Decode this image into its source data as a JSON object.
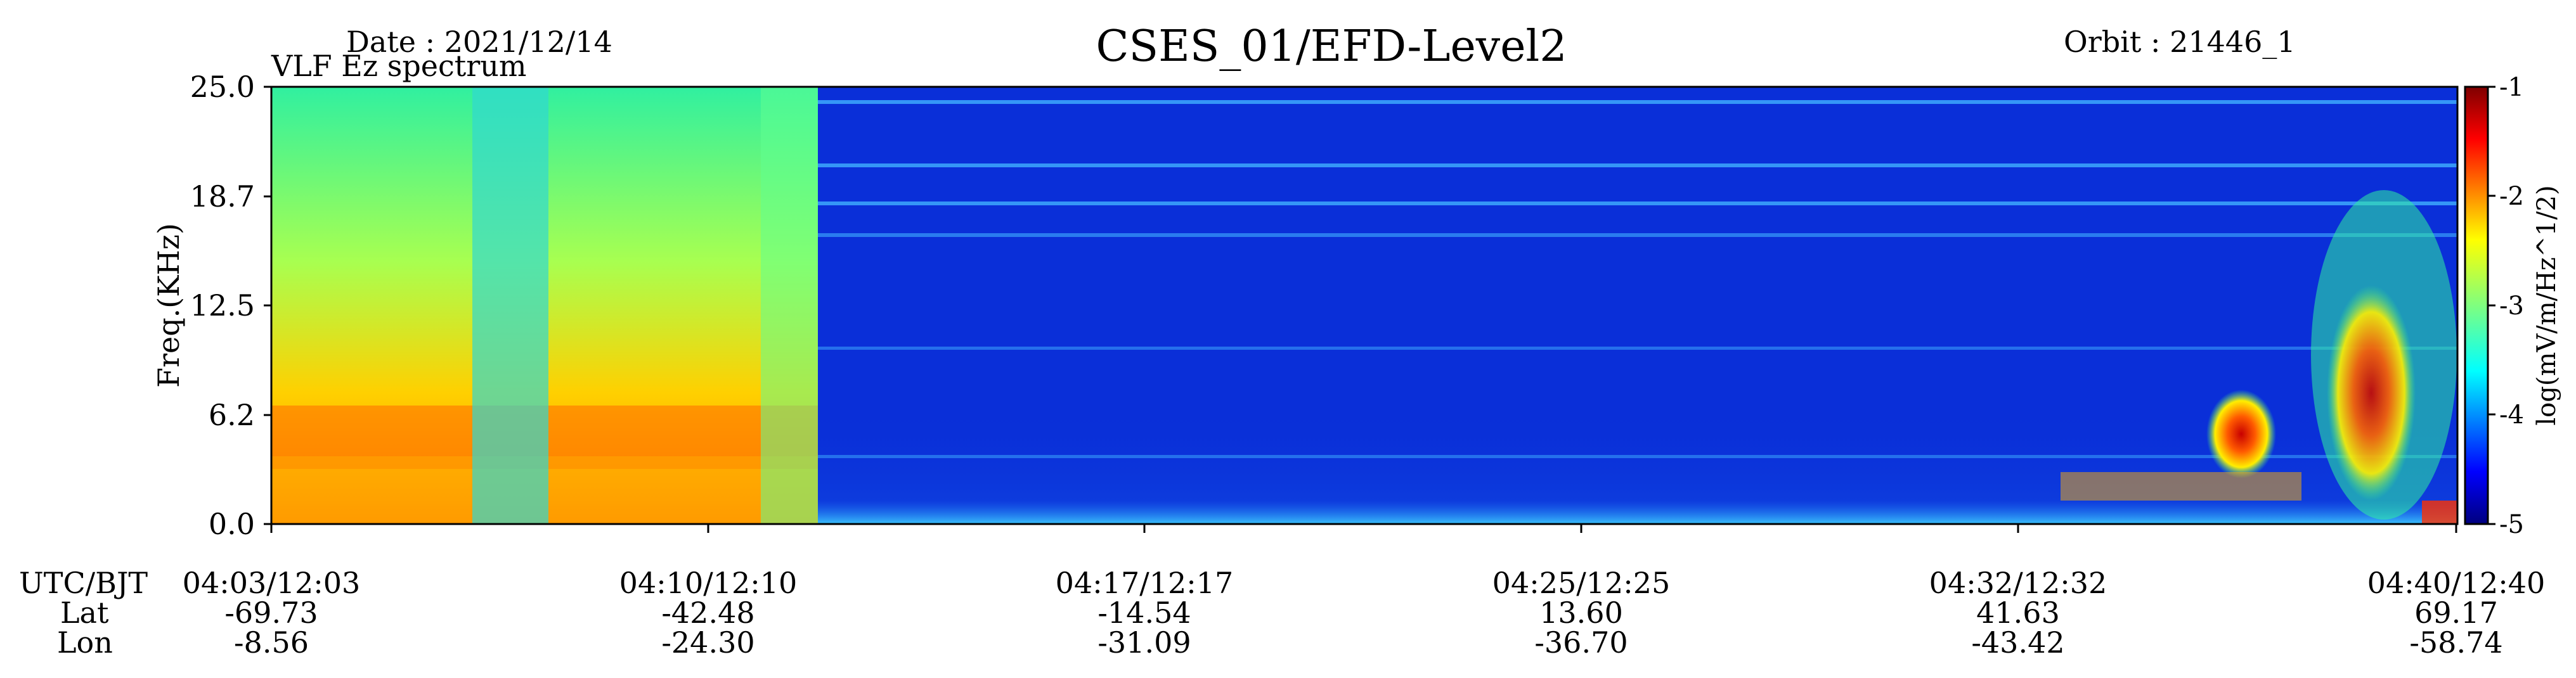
{
  "header": {
    "date": "Date : 2021/12/14",
    "subtitle": "VLF Ez spectrum",
    "title": "CSES_01/EFD-Level2",
    "orbit": "Orbit : 21446_1"
  },
  "chart_data": {
    "type": "heatmap",
    "title": "CSES_01/EFD-Level2",
    "subtitle": "VLF Ez spectrum",
    "ylabel": "Freq.(KHz)",
    "ylim": [
      0.0,
      25.0
    ],
    "yticks": [
      "0.0",
      "6.2",
      "12.5",
      "18.7",
      "25.0"
    ],
    "colorbar": {
      "label": "log(mV/m/Hz^1/2)",
      "range": [
        -5,
        -1
      ],
      "ticks": [
        "-1",
        "-2",
        "-3",
        "-4",
        "-5"
      ],
      "colormap": "jet"
    },
    "x_row_labels": [
      "UTC/BJT",
      "Lat",
      "Lon"
    ],
    "x_ticks": [
      {
        "time": "04:03/12:03",
        "lat": "-69.73",
        "lon": "-8.56"
      },
      {
        "time": "04:10/12:10",
        "lat": "-42.48",
        "lon": "-24.30"
      },
      {
        "time": "04:17/12:17",
        "lat": "-14.54",
        "lon": "-31.09"
      },
      {
        "time": "04:25/12:25",
        "lat": "13.60",
        "lon": "-36.70"
      },
      {
        "time": "04:32/12:32",
        "lat": "41.63",
        "lon": "-43.42"
      },
      {
        "time": "04:40/12:40",
        "lat": "69.17",
        "lon": "-58.74"
      }
    ]
  },
  "colors": {
    "background": "#0a2fd8",
    "high_power": "#ff4000",
    "mid_power": "#3cff90",
    "low_power": "#0000a0"
  }
}
